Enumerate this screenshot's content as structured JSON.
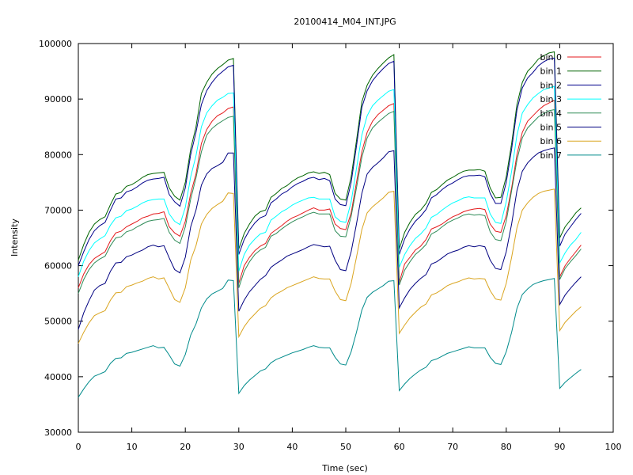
{
  "chart_data": {
    "type": "line",
    "title": "20100414_M04_INT.JPG",
    "xlabel": "Time (sec)",
    "ylabel": "Intensity",
    "xlim": [
      0,
      100
    ],
    "ylim": [
      30000,
      100000
    ],
    "xticks": [
      0,
      10,
      20,
      30,
      40,
      50,
      60,
      70,
      80,
      90,
      100
    ],
    "yticks": [
      30000,
      40000,
      50000,
      60000,
      70000,
      80000,
      90000,
      100000
    ],
    "grid": false,
    "legend_position": "top-right",
    "x": [
      0,
      1,
      2,
      3,
      4,
      5,
      6,
      7,
      8,
      9,
      10,
      11,
      12,
      13,
      14,
      15,
      16,
      17,
      18,
      19,
      20,
      21,
      22,
      23,
      24,
      25,
      26,
      27,
      28,
      29,
      30,
      31,
      32,
      33,
      34,
      35,
      36,
      37,
      38,
      39,
      40,
      41,
      42,
      43,
      44,
      45,
      46,
      47,
      48,
      49,
      50,
      51,
      52,
      53,
      54,
      55,
      56,
      57,
      58,
      59,
      60,
      61,
      62,
      63,
      64,
      65,
      66,
      67,
      68,
      69,
      70,
      71,
      72,
      73,
      74,
      75,
      76,
      77,
      78,
      79,
      80,
      81,
      82,
      83,
      84,
      85,
      86,
      87,
      88,
      89,
      90,
      91,
      92,
      93,
      94
    ],
    "series": [
      {
        "name": "bin 0",
        "color": "#e41a1c",
        "values": [
          56000,
          58500,
          60200,
          61300,
          61900,
          62500,
          64500,
          65900,
          66200,
          67000,
          67500,
          68000,
          68600,
          68900,
          69300,
          69400,
          69700,
          67000,
          65900,
          65300,
          68000,
          73000,
          76500,
          82000,
          84500,
          86000,
          87000,
          87500,
          88300,
          88600,
          56800,
          60000,
          61500,
          62700,
          63500,
          64000,
          65800,
          66500,
          67200,
          68000,
          68600,
          69000,
          69500,
          70000,
          70400,
          70000,
          70000,
          70200,
          67500,
          66700,
          66500,
          69500,
          75000,
          80500,
          84000,
          86000,
          87200,
          88000,
          88800,
          89200,
          57000,
          60300,
          61500,
          62800,
          63500,
          64700,
          66600,
          67000,
          67500,
          68200,
          68800,
          69200,
          69700,
          70000,
          70200,
          70300,
          70100,
          67500,
          66200,
          66000,
          69000,
          74000,
          80000,
          84000,
          86000,
          87000,
          88000,
          88800,
          89300,
          89800,
          58000,
          60000,
          61300,
          62500,
          63700
        ]
      },
      {
        "name": "bin 1",
        "color": "#006400",
        "values": [
          61000,
          63800,
          66000,
          67500,
          68300,
          68800,
          71000,
          72900,
          73200,
          74300,
          74600,
          75200,
          75900,
          76400,
          76600,
          76700,
          76800,
          74000,
          72500,
          71800,
          75000,
          81000,
          85000,
          91000,
          93000,
          94500,
          95500,
          96200,
          97000,
          97300,
          63000,
          65800,
          67500,
          68900,
          69700,
          70000,
          72300,
          73000,
          73900,
          74400,
          75200,
          75800,
          76200,
          76700,
          76900,
          76600,
          76800,
          76400,
          73000,
          72000,
          71800,
          76000,
          82500,
          89500,
          92500,
          94300,
          95500,
          96500,
          97400,
          98000,
          63000,
          66000,
          67800,
          69200,
          70000,
          71200,
          73200,
          73700,
          74600,
          75400,
          75900,
          76500,
          77000,
          77200,
          77200,
          77300,
          77000,
          74000,
          72200,
          72300,
          76000,
          82000,
          89000,
          93000,
          95000,
          96000,
          97200,
          97800,
          98300,
          98500,
          65000,
          67000,
          68200,
          69500,
          70400
        ]
      },
      {
        "name": "bin 2",
        "color": "#00008b",
        "values": [
          60000,
          62500,
          64700,
          66300,
          67200,
          67800,
          70000,
          72000,
          72200,
          73300,
          73600,
          74200,
          74900,
          75400,
          75600,
          75700,
          75900,
          72800,
          71500,
          70700,
          74000,
          80000,
          84000,
          89000,
          91500,
          93000,
          94200,
          95000,
          95800,
          96100,
          62000,
          64700,
          66400,
          67700,
          68600,
          69000,
          71300,
          72000,
          72900,
          73400,
          74200,
          74800,
          75200,
          75700,
          75900,
          75500,
          75700,
          75300,
          72000,
          71000,
          70800,
          75000,
          81500,
          88500,
          91500,
          93300,
          94500,
          95500,
          96400,
          96800,
          62000,
          64800,
          66600,
          68000,
          68900,
          70100,
          72200,
          72800,
          73700,
          74400,
          74900,
          75500,
          76000,
          76200,
          76200,
          76300,
          76000,
          73000,
          71200,
          71200,
          75000,
          81000,
          88000,
          92000,
          93800,
          94800,
          96000,
          96700,
          97200,
          97400,
          63500,
          65700,
          67000,
          68300,
          69400
        ]
      },
      {
        "name": "bin 3",
        "color": "#00ffff",
        "values": [
          58000,
          60800,
          62700,
          64100,
          64800,
          65400,
          67300,
          68600,
          68900,
          69900,
          70200,
          70700,
          71300,
          71700,
          71900,
          72000,
          72000,
          69300,
          68000,
          67400,
          70500,
          76000,
          79800,
          85000,
          87500,
          88800,
          89800,
          90300,
          91000,
          91100,
          59000,
          62000,
          63700,
          64800,
          65700,
          66000,
          68200,
          68900,
          69700,
          70200,
          70900,
          71400,
          71800,
          72200,
          72300,
          72000,
          72000,
          72000,
          68800,
          68000,
          67800,
          71500,
          77500,
          83500,
          87000,
          88800,
          89800,
          90600,
          91400,
          91700,
          59700,
          62000,
          63600,
          64900,
          65700,
          66800,
          68700,
          69200,
          70000,
          70700,
          71300,
          71700,
          72200,
          72400,
          72200,
          72200,
          72200,
          69300,
          67800,
          67600,
          71500,
          77000,
          83500,
          87500,
          89000,
          90200,
          91000,
          91700,
          92000,
          92300,
          60500,
          62300,
          63700,
          64700,
          66000
        ]
      },
      {
        "name": "bin 4",
        "color": "#2e8b57",
        "values": [
          55000,
          57500,
          59300,
          60500,
          61200,
          61700,
          63600,
          65000,
          65200,
          66100,
          66400,
          67000,
          67500,
          68000,
          68200,
          68300,
          68500,
          66000,
          64600,
          64000,
          67000,
          72000,
          75800,
          80500,
          83500,
          84700,
          85500,
          86100,
          86700,
          86900,
          56000,
          59000,
          60700,
          62000,
          62800,
          63300,
          65300,
          65800,
          66600,
          67300,
          67900,
          68400,
          68800,
          69300,
          69600,
          69300,
          69300,
          69300,
          66300,
          65300,
          65200,
          68900,
          74000,
          79500,
          83000,
          84800,
          85800,
          86600,
          87400,
          87800,
          56500,
          59200,
          60700,
          62000,
          62800,
          63800,
          65700,
          66200,
          67000,
          67700,
          68200,
          68600,
          69100,
          69300,
          69100,
          69200,
          69000,
          66100,
          64700,
          64500,
          68000,
          73500,
          79000,
          83000,
          84800,
          85800,
          86800,
          87400,
          87900,
          88100,
          57500,
          59500,
          60700,
          61800,
          63000
        ]
      },
      {
        "name": "bin 5",
        "color": "#000080",
        "values": [
          48500,
          51500,
          53700,
          55600,
          56400,
          56800,
          59000,
          60500,
          60600,
          61600,
          61900,
          62400,
          62800,
          63400,
          63700,
          63400,
          63600,
          61400,
          59300,
          58700,
          61500,
          67000,
          70000,
          74500,
          76500,
          77500,
          78000,
          78600,
          80300,
          80300,
          51800,
          53800,
          55300,
          56400,
          57500,
          58200,
          59700,
          60400,
          61000,
          61700,
          62100,
          62500,
          62900,
          63400,
          63800,
          63600,
          63400,
          63500,
          61000,
          59300,
          59100,
          62500,
          67500,
          73000,
          76500,
          77700,
          78500,
          79400,
          80500,
          80700,
          52400,
          54200,
          55700,
          56800,
          57700,
          58400,
          60300,
          60700,
          61400,
          62100,
          62500,
          62800,
          63300,
          63600,
          63400,
          63600,
          63400,
          61000,
          59500,
          59300,
          62500,
          67500,
          73500,
          77000,
          78500,
          79500,
          80300,
          80700,
          81000,
          81200,
          53000,
          54700,
          55900,
          57000,
          58000
        ]
      },
      {
        "name": "bin 6",
        "color": "#daa520",
        "values": [
          46000,
          48000,
          49700,
          51000,
          51500,
          51900,
          53800,
          55100,
          55200,
          56200,
          56500,
          56900,
          57200,
          57700,
          58000,
          57600,
          57800,
          55900,
          53900,
          53400,
          56000,
          61000,
          63600,
          67500,
          69200,
          70300,
          71000,
          71600,
          73100,
          73000,
          47200,
          49000,
          50300,
          51300,
          52300,
          52800,
          54200,
          54900,
          55400,
          56000,
          56400,
          56800,
          57200,
          57600,
          58000,
          57700,
          57600,
          57600,
          55400,
          53900,
          53700,
          56800,
          61500,
          66500,
          69500,
          70600,
          71400,
          72200,
          73200,
          73400,
          47800,
          49300,
          50600,
          51600,
          52500,
          53100,
          54700,
          55100,
          55700,
          56400,
          56800,
          57100,
          57500,
          57800,
          57600,
          57700,
          57600,
          55500,
          54000,
          53800,
          56800,
          61500,
          66800,
          70000,
          71300,
          72300,
          73000,
          73400,
          73600,
          73800,
          48300,
          49800,
          50800,
          51800,
          52600
        ]
      },
      {
        "name": "bin 7",
        "color": "#008b8b",
        "values": [
          36300,
          37800,
          39100,
          40100,
          40500,
          40900,
          42400,
          43300,
          43400,
          44200,
          44400,
          44700,
          45000,
          45300,
          45600,
          45200,
          45300,
          43900,
          42300,
          41900,
          44000,
          47500,
          49500,
          52400,
          54000,
          54900,
          55400,
          55900,
          57400,
          57300,
          37000,
          38400,
          39400,
          40200,
          41000,
          41400,
          42500,
          43100,
          43500,
          43900,
          44300,
          44600,
          44900,
          45300,
          45600,
          45300,
          45200,
          45200,
          43500,
          42300,
          42100,
          44500,
          48000,
          52000,
          54300,
          55200,
          55800,
          56400,
          57200,
          57300,
          37500,
          38700,
          39700,
          40500,
          41200,
          41700,
          42900,
          43200,
          43700,
          44200,
          44500,
          44800,
          45100,
          45400,
          45200,
          45200,
          45200,
          43500,
          42400,
          42200,
          44500,
          48000,
          52300,
          54800,
          55800,
          56600,
          57000,
          57300,
          57500,
          57700,
          37900,
          39000,
          39800,
          40600,
          41300
        ]
      }
    ]
  }
}
